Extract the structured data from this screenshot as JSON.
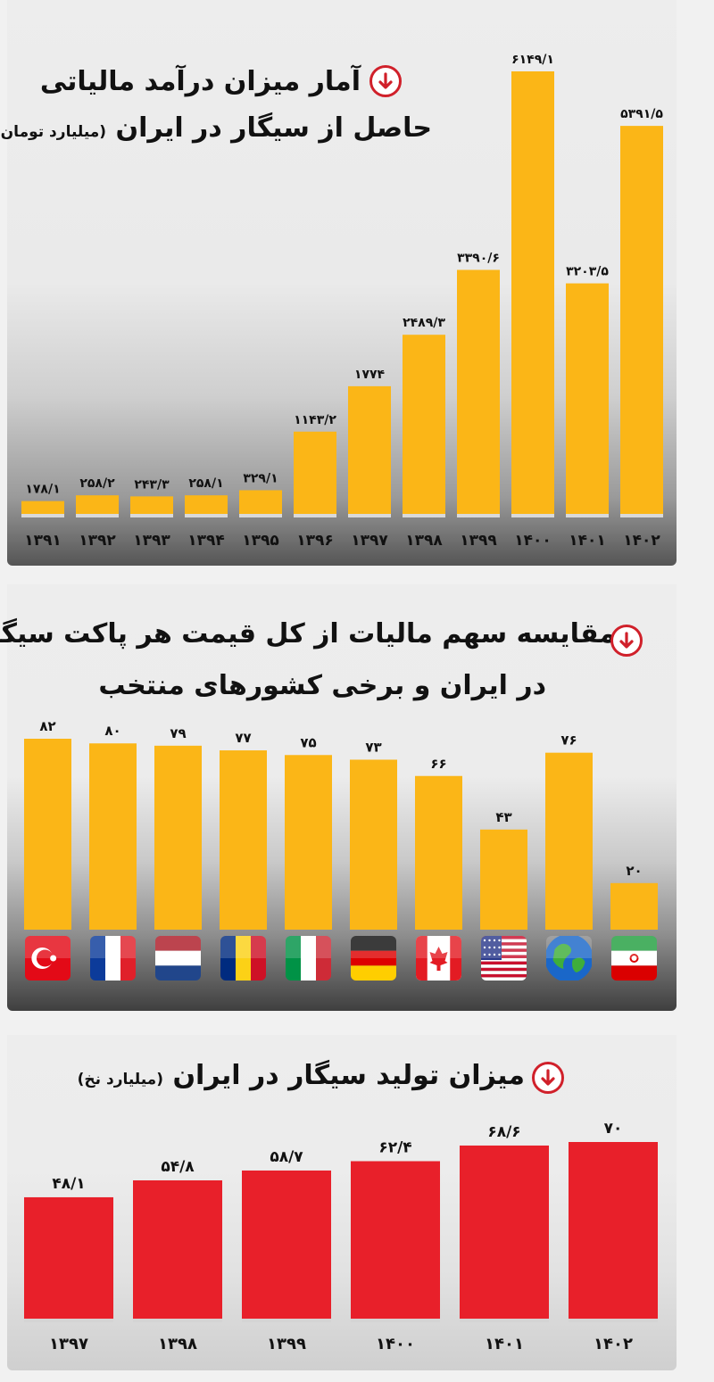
{
  "sections": [
    {
      "title_line1": "آمار میزان درآمد مالیاتی",
      "title_line2": "حاصل از سیگار در ایران",
      "title_unit": "(میلیارد تومان)"
    },
    {
      "title_line1": "مقایسه سهم مالیات از کل قیمت هر پاکت سیگار",
      "title_line2": "در ایران و برخی کشورهای منتخب"
    },
    {
      "title_line1": "میزان تولید سیگار در ایران",
      "title_unit": "(میلیارد نخ)"
    }
  ],
  "icons": [
    "arrow-down-circle-icon"
  ],
  "chart_data": [
    {
      "type": "bar",
      "title": "آمار میزان درآمد مالیاتی حاصل از سیگار در ایران (میلیارد تومان)",
      "categories": [
        "۱۳۹۱",
        "۱۳۹۲",
        "۱۳۹۳",
        "۱۳۹۴",
        "۱۳۹۵",
        "۱۳۹۶",
        "۱۳۹۷",
        "۱۳۹۸",
        "۱۳۹۹",
        "۱۴۰۰",
        "۱۴۰۱",
        "۱۴۰۲"
      ],
      "values": [
        178.1,
        258.2,
        243.3,
        258.1,
        329.1,
        1143.2,
        1774,
        2489.3,
        3390.6,
        6149.1,
        3203.5,
        5391.5
      ],
      "value_labels": [
        "۱۷۸/۱",
        "۲۵۸/۲",
        "۲۴۳/۳",
        "۲۵۸/۱",
        "۳۲۹/۱",
        "۱۱۴۳/۲",
        "۱۷۷۴",
        "۲۴۸۹/۳",
        "۳۳۹۰/۶",
        "۶۱۴۹/۱",
        "۳۲۰۳/۵",
        "۵۳۹۱/۵"
      ],
      "ylim": [
        0,
        6149.1
      ],
      "bar_color": "#fbb617",
      "grid": false
    },
    {
      "type": "bar",
      "title": "مقایسه سهم مالیات از کل قیمت هر پاکت سیگار در ایران و برخی کشورهای منتخب",
      "categories": [
        "turkey-flag",
        "france-flag",
        "netherlands-flag",
        "romania-flag",
        "italy-flag",
        "germany-flag",
        "canada-flag",
        "usa-flag",
        "globe-icon",
        "iran-flag"
      ],
      "values": [
        82,
        80,
        79,
        77,
        75,
        73,
        66,
        43,
        76,
        20
      ],
      "value_labels": [
        "۸۲",
        "۸۰",
        "۷۹",
        "۷۷",
        "۷۵",
        "۷۳",
        "۶۶",
        "۴۳",
        "۷۶",
        "۲۰"
      ],
      "ylim": [
        0,
        82
      ],
      "bar_color": "#fbb617",
      "grid": false
    },
    {
      "type": "bar",
      "title": "میزان تولید سیگار در ایران (میلیارد نخ)",
      "categories": [
        "۱۳۹۷",
        "۱۳۹۸",
        "۱۳۹۹",
        "۱۴۰۰",
        "۱۴۰۱",
        "۱۴۰۲"
      ],
      "values": [
        48.1,
        54.8,
        58.7,
        62.4,
        68.6,
        70
      ],
      "value_labels": [
        "۴۸/۱",
        "۵۴/۸",
        "۵۸/۷",
        "۶۲/۴",
        "۶۸/۶",
        "۷۰"
      ],
      "ylim": [
        0,
        70
      ],
      "bar_color": "#e8202a",
      "grid": false
    }
  ]
}
